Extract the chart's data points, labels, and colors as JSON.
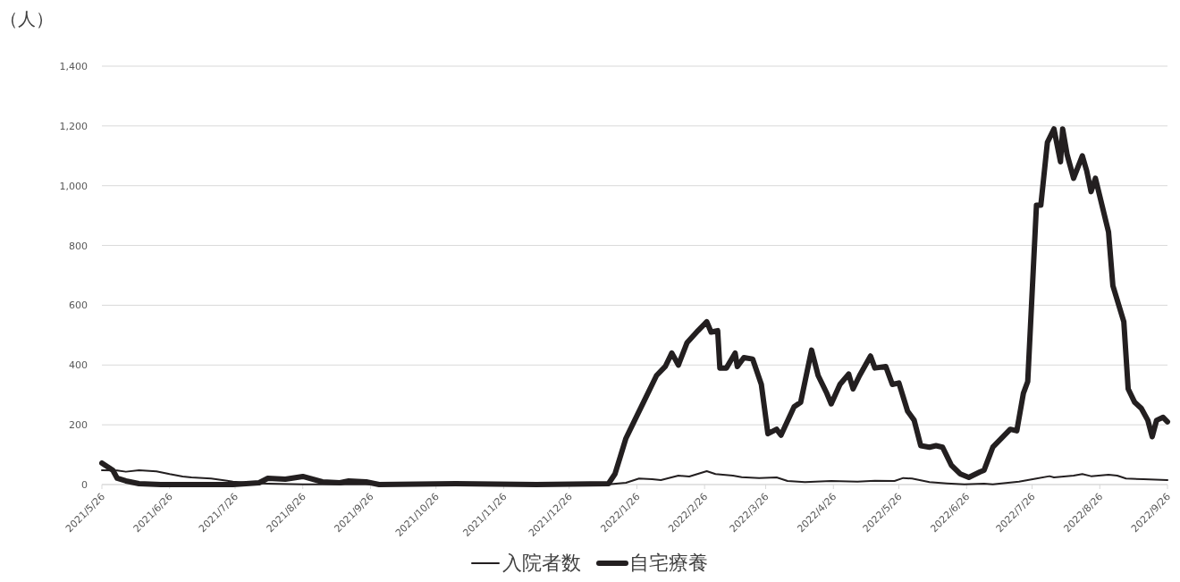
{
  "chart_data": {
    "type": "line",
    "ylabel": "（人）",
    "xlim": [
      "2021-05-26",
      "2022-09-26"
    ],
    "ylim": [
      0,
      1400
    ],
    "xticks": [
      {
        "value": "2021-05-26",
        "label": "2021/5/26"
      },
      {
        "value": "2021-06-26",
        "label": "2021/6/26"
      },
      {
        "value": "2021-07-26",
        "label": "2021/7/26"
      },
      {
        "value": "2021-08-26",
        "label": "2021/8/26"
      },
      {
        "value": "2021-09-26",
        "label": "2021/9/26"
      },
      {
        "value": "2021-10-26",
        "label": "2021/10/26"
      },
      {
        "value": "2021-11-26",
        "label": "2021/11/26"
      },
      {
        "value": "2021-12-26",
        "label": "2021/12/26"
      },
      {
        "value": "2022-01-26",
        "label": "2022/1/26"
      },
      {
        "value": "2022-02-26",
        "label": "2022/2/26"
      },
      {
        "value": "2022-03-26",
        "label": "2022/3/26"
      },
      {
        "value": "2022-04-26",
        "label": "2022/4/26"
      },
      {
        "value": "2022-05-26",
        "label": "2022/5/26"
      },
      {
        "value": "2022-06-26",
        "label": "2022/6/26"
      },
      {
        "value": "2022-07-26",
        "label": "2022/7/26"
      },
      {
        "value": "2022-08-26",
        "label": "2022/8/26"
      },
      {
        "value": "2022-09-26",
        "label": "2022/9/26"
      }
    ],
    "yticks": [
      0,
      200,
      400,
      600,
      800,
      {
        "value": 1000,
        "label": "1,000"
      },
      {
        "value": 1200,
        "label": "1,200"
      },
      {
        "value": 1400,
        "label": "1,400"
      }
    ],
    "grid": "y",
    "legend": "bottom",
    "marker": "none",
    "line_style": "solid",
    "series": [
      {
        "name": "入院者数",
        "color": "#231f20",
        "x": [
          "2021-05-26",
          "2021-06-02",
          "2021-06-06",
          "2021-06-12",
          "2021-06-20",
          "2021-06-26",
          "2021-07-02",
          "2021-07-06",
          "2021-07-15",
          "2021-07-25",
          "2021-08-02",
          "2021-08-10",
          "2021-08-26",
          "2021-10-31",
          "2022-01-13",
          "2022-01-21",
          "2022-01-27",
          "2022-02-02",
          "2022-02-06",
          "2022-02-14",
          "2022-02-19",
          "2022-02-27",
          "2022-03-03",
          "2022-03-11",
          "2022-03-15",
          "2022-03-23",
          "2022-03-31",
          "2022-04-05",
          "2022-04-13",
          "2022-04-25",
          "2022-05-07",
          "2022-05-15",
          "2022-05-24",
          "2022-05-28",
          "2022-06-01",
          "2022-06-09",
          "2022-06-17",
          "2022-06-25",
          "2022-07-04",
          "2022-07-08",
          "2022-07-12",
          "2022-07-20",
          "2022-07-28",
          "2022-08-03",
          "2022-08-05",
          "2022-08-14",
          "2022-08-18",
          "2022-08-22",
          "2022-08-30",
          "2022-09-03",
          "2022-09-07",
          "2022-09-15",
          "2022-09-26"
        ],
        "values": [
          48,
          47,
          43,
          48,
          44,
          35,
          27,
          24,
          20,
          10,
          5,
          3,
          1,
          1,
          1,
          6,
          20,
          18,
          15,
          30,
          27,
          45,
          35,
          30,
          25,
          22,
          24,
          12,
          8,
          12,
          10,
          13,
          12,
          22,
          20,
          8,
          4,
          1,
          3,
          1,
          4,
          10,
          20,
          28,
          24,
          30,
          35,
          28,
          33,
          30,
          20,
          18,
          15
        ]
      },
      {
        "name": "自宅療養",
        "color": "#231f20",
        "x": [
          "2021-05-26",
          "2021-05-31",
          "2021-06-02",
          "2021-06-06",
          "2021-06-12",
          "2021-06-22",
          "2021-07-25",
          "2021-08-06",
          "2021-08-10",
          "2021-08-18",
          "2021-08-26",
          "2021-09-04",
          "2021-09-12",
          "2021-09-16",
          "2021-09-24",
          "2021-09-30",
          "2021-11-04",
          "2021-12-11",
          "2022-01-13",
          "2022-01-16",
          "2022-01-21",
          "2022-01-25",
          "2022-01-29",
          "2022-02-04",
          "2022-02-08",
          "2022-02-11",
          "2022-02-14",
          "2022-02-18",
          "2022-02-23",
          "2022-02-27",
          "2022-03-01",
          "2022-03-04",
          "2022-03-05",
          "2022-03-08",
          "2022-03-12",
          "2022-03-13",
          "2022-03-16",
          "2022-03-20",
          "2022-03-24",
          "2022-03-27",
          "2022-03-31",
          "2022-04-02",
          "2022-04-08",
          "2022-04-11",
          "2022-04-16",
          "2022-04-19",
          "2022-04-23",
          "2022-04-25",
          "2022-04-29",
          "2022-05-03",
          "2022-05-05",
          "2022-05-08",
          "2022-05-13",
          "2022-05-15",
          "2022-05-20",
          "2022-05-23",
          "2022-05-26",
          "2022-05-30",
          "2022-06-02",
          "2022-06-05",
          "2022-06-09",
          "2022-06-12",
          "2022-06-15",
          "2022-06-19",
          "2022-06-23",
          "2022-06-27",
          "2022-07-02",
          "2022-07-04",
          "2022-07-08",
          "2022-07-12",
          "2022-07-16",
          "2022-07-19",
          "2022-07-22",
          "2022-07-24",
          "2022-07-28",
          "2022-07-30",
          "2022-08-02",
          "2022-08-05",
          "2022-08-08",
          "2022-08-09",
          "2022-08-11",
          "2022-08-14",
          "2022-08-18",
          "2022-08-20",
          "2022-08-22",
          "2022-08-24",
          "2022-08-27",
          "2022-08-30",
          "2022-09-01",
          "2022-09-06",
          "2022-09-08",
          "2022-09-11",
          "2022-09-14",
          "2022-09-17",
          "2022-09-19",
          "2022-09-21",
          "2022-09-24",
          "2022-09-26"
        ],
        "values": [
          72,
          48,
          21,
          12,
          3,
          0,
          0,
          6,
          21,
          18,
          27,
          9,
          6,
          12,
          9,
          0,
          3,
          0,
          3,
          36,
          155,
          215,
          275,
          365,
          395,
          440,
          400,
          475,
          515,
          545,
          510,
          515,
          390,
          390,
          440,
          395,
          425,
          420,
          335,
          170,
          185,
          165,
          260,
          275,
          450,
          365,
          305,
          270,
          335,
          370,
          320,
          365,
          430,
          390,
          395,
          335,
          340,
          245,
          215,
          130,
          125,
          130,
          125,
          65,
          36,
          24,
          42,
          48,
          125,
          155,
          185,
          180,
          305,
          345,
          935,
          935,
          1145,
          1190,
          1080,
          1190,
          1105,
          1025,
          1100,
          1050,
          980,
          1025,
          935,
          845,
          665,
          545,
          320,
          275,
          255,
          215,
          160,
          215,
          225,
          210
        ]
      }
    ]
  }
}
